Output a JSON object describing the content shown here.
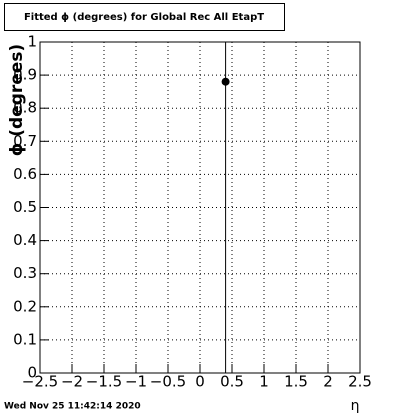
{
  "chart_data": {
    "type": "scatter",
    "title": "Fitted ϕ (degrees) for Global Rec All EtapT",
    "xlabel": "η",
    "ylabel": "ϕ (degrees)",
    "timestamp": "Wed Nov 25 11:42:14 2020",
    "x": [
      0.4
    ],
    "values": [
      0.88
    ],
    "errors": [
      1
    ],
    "color": "#000000",
    "xlim": [
      -2.5,
      2.5
    ],
    "xticks": [
      {
        "value": -2.5,
        "label": "−2.5"
      },
      {
        "value": -2,
        "label": "−2"
      },
      {
        "value": -1.5,
        "label": "−1.5"
      },
      {
        "value": -1,
        "label": "−1"
      },
      {
        "value": -0.5,
        "label": "−0.5"
      },
      0,
      0.5,
      1,
      1.5,
      2,
      2.5
    ],
    "ylim": [
      0,
      1
    ],
    "yticks": [
      0,
      0.1,
      0.2,
      0.3,
      0.4,
      0.5,
      0.6,
      0.7,
      0.8,
      0.9,
      1
    ],
    "grid": true
  }
}
